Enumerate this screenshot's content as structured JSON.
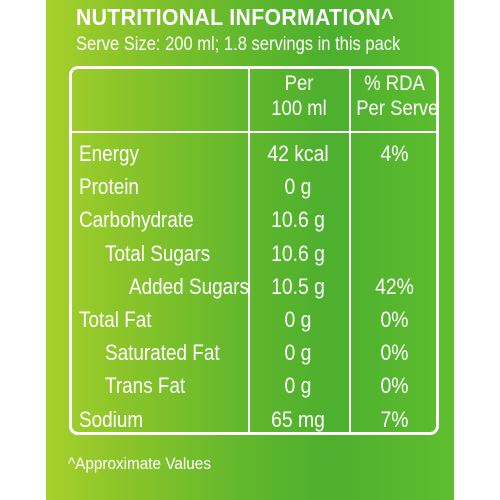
{
  "label": {
    "heading": "NUTRITIONAL INFORMATION^",
    "serve_size": "Serve Size: 200 ml; 1.8 servings in this pack",
    "footnote": "^Approximate Values",
    "columns": {
      "per_line1": "Per",
      "per_line2": "100 ml",
      "rda_line1": "% RDA",
      "rda_line2": "Per Serve"
    },
    "rows": [
      {
        "name": "Energy",
        "per": "42 kcal",
        "rda": "4%",
        "indent": 0
      },
      {
        "name": "Protein",
        "per": "0 g",
        "rda": "",
        "indent": 0
      },
      {
        "name": "Carbohydrate",
        "per": "10.6 g",
        "rda": "",
        "indent": 0
      },
      {
        "name": "Total Sugars",
        "per": "10.6 g",
        "rda": "",
        "indent": 1
      },
      {
        "name": "Added Sugars",
        "per": "10.5 g",
        "rda": "42%",
        "indent": 2
      },
      {
        "name": "Total Fat",
        "per": "0 g",
        "rda": "0%",
        "indent": 0
      },
      {
        "name": "Saturated Fat",
        "per": "0 g",
        "rda": "0%",
        "indent": 1
      },
      {
        "name": "Trans Fat",
        "per": "0 g",
        "rda": "0%",
        "indent": 1
      },
      {
        "name": "Sodium",
        "per": "65 mg",
        "rda": "7%",
        "indent": 0
      }
    ]
  }
}
